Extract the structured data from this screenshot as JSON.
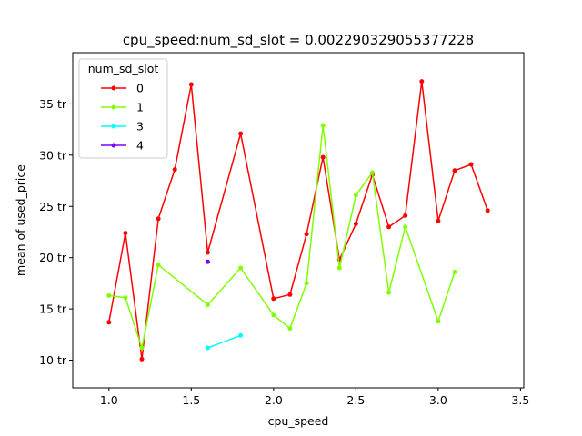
{
  "chart_data": {
    "type": "line",
    "title": "cpu_speed:num_sd_slot = 0.002290329055377228",
    "xlabel": "cpu_speed",
    "ylabel": "mean of used_price",
    "xlim": [
      0.78,
      3.52
    ],
    "ylim": [
      7.3,
      40.0
    ],
    "x_ticks": [
      1.0,
      1.5,
      2.0,
      2.5,
      3.0,
      3.5
    ],
    "x_tick_labels": [
      "1.0",
      "1.5",
      "2.0",
      "2.5",
      "3.0",
      "3.5"
    ],
    "y_ticks": [
      10,
      15,
      20,
      25,
      30,
      35
    ],
    "y_tick_labels": [
      "10 tr",
      "15 tr",
      "20 tr",
      "25 tr",
      "30 tr",
      "35 tr"
    ],
    "grid": false,
    "legend": {
      "title": "num_sd_slot",
      "position": "top-left"
    },
    "series": [
      {
        "name": "0",
        "color": "#ff0000",
        "x": [
          1.0,
          1.1,
          1.2,
          1.3,
          1.4,
          1.5,
          1.6,
          1.8,
          2.0,
          2.1,
          2.2,
          2.3,
          2.4,
          2.5,
          2.6,
          2.7,
          2.8,
          2.9,
          3.0,
          3.1,
          3.2,
          3.3
        ],
        "y": [
          13.7,
          22.4,
          10.1,
          23.8,
          28.6,
          36.9,
          20.5,
          32.1,
          16.0,
          16.4,
          22.3,
          29.8,
          19.8,
          23.3,
          28.1,
          23.0,
          24.1,
          37.2,
          23.6,
          28.5,
          29.1,
          24.6
        ]
      },
      {
        "name": "1",
        "color": "#80ff00",
        "x": [
          1.0,
          1.1,
          1.2,
          1.3,
          1.6,
          1.8,
          2.0,
          2.1,
          2.2,
          2.3,
          2.4,
          2.5,
          2.6,
          2.7,
          2.8,
          3.0,
          3.1
        ],
        "y": [
          16.3,
          16.1,
          11.2,
          19.3,
          15.4,
          19.0,
          14.4,
          13.1,
          17.5,
          32.9,
          19.0,
          26.1,
          28.3,
          16.6,
          23.0,
          13.8,
          18.6
        ]
      },
      {
        "name": "3",
        "color": "#00ffff",
        "x": [
          1.6,
          1.8
        ],
        "y": [
          11.2,
          12.4
        ]
      },
      {
        "name": "4",
        "color": "#8000ff",
        "x": [
          1.6
        ],
        "y": [
          19.6
        ]
      }
    ]
  }
}
